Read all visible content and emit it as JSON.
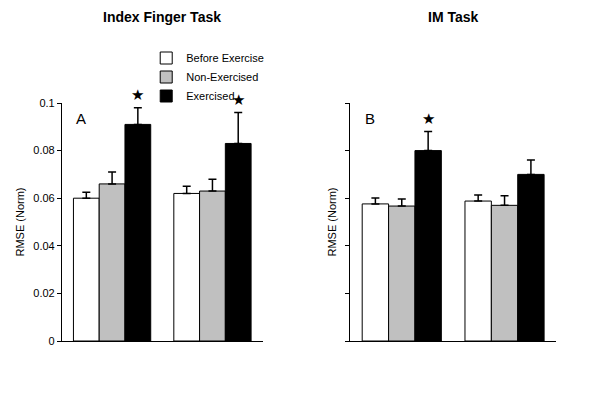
{
  "chart_data": [
    {
      "type": "bar",
      "title": "Index Finger Task",
      "y_label": "RMSE (Norm)",
      "categories": [
        null,
        null
      ],
      "series": [
        {
          "name": "Before Exercise",
          "color": "#ffffff",
          "values": [
            0.06,
            0.062
          ],
          "errors": [
            0.0025,
            0.003
          ]
        },
        {
          "name": "Non-Exercised",
          "color": "#c0c0c0",
          "values": [
            0.066,
            0.063
          ],
          "errors": [
            0.005,
            0.005
          ]
        },
        {
          "name": "Exercised",
          "color": "#000000",
          "values": [
            0.091,
            0.083
          ],
          "errors": [
            0.007,
            0.013
          ]
        }
      ],
      "ylim": [
        0,
        0.1
      ],
      "yticks": [
        0,
        0.02,
        0.04,
        0.06,
        0.08,
        0.1
      ],
      "legend": "top",
      "tick_labels": "y",
      "annotations": [
        {
          "text": "A"
        },
        {
          "text": "★",
          "category": 0,
          "series": "Exercised"
        },
        {
          "text": "★",
          "category": 1,
          "series": "Exercised"
        }
      ]
    },
    {
      "type": "bar",
      "title": "IM Task",
      "y_label": "RMSE (Norm)",
      "categories": [
        null,
        null
      ],
      "series": [
        {
          "name": "Before Exercise",
          "color": "#ffffff",
          "values": [
            0.0576,
            0.0588
          ],
          "errors": [
            0.0025,
            0.0025
          ]
        },
        {
          "name": "Non-Exercised",
          "color": "#c0c0c0",
          "values": [
            0.0567,
            0.057
          ],
          "errors": [
            0.003,
            0.004
          ]
        },
        {
          "name": "Exercised",
          "color": "#000000",
          "values": [
            0.08,
            0.07
          ],
          "errors": [
            0.008,
            0.006
          ]
        }
      ],
      "ylim": [
        0,
        0.1
      ],
      "yticks": [
        0,
        0.02,
        0.04,
        0.06,
        0.08,
        0.1
      ],
      "tick_labels": false,
      "annotations": [
        {
          "text": "B"
        },
        {
          "text": "★",
          "category": 0,
          "series": "Exercised"
        }
      ]
    }
  ]
}
